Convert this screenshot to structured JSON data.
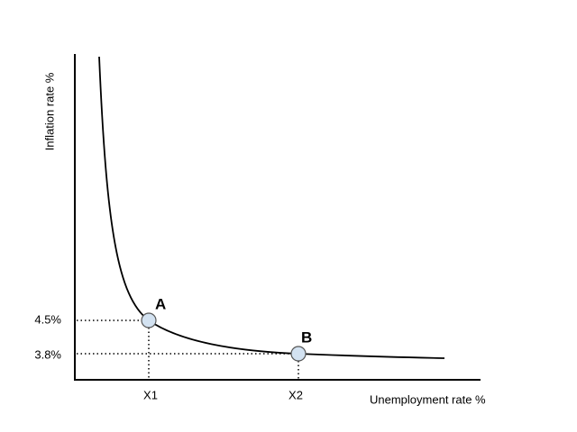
{
  "y_axis": {
    "label": "Inflation rate %"
  },
  "x_axis": {
    "label": "Unemployment rate %"
  },
  "points": [
    {
      "label": "A",
      "x_label": "X1",
      "y_label": "4.5%"
    },
    {
      "label": "B",
      "x_label": "X2",
      "y_label": "3.8%"
    }
  ]
}
